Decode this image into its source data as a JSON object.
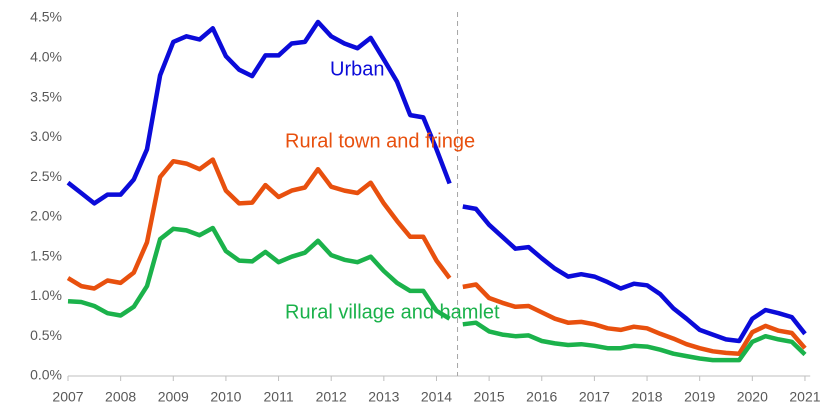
{
  "chart_data": {
    "type": "line",
    "x": [
      2007,
      2007.25,
      2007.5,
      2007.75,
      2008,
      2008.25,
      2008.5,
      2008.75,
      2009,
      2009.25,
      2009.5,
      2009.75,
      2010,
      2010.25,
      2010.5,
      2010.75,
      2011,
      2011.25,
      2011.5,
      2011.75,
      2012,
      2012.25,
      2012.5,
      2012.75,
      2013,
      2013.25,
      2013.5,
      2013.75,
      2014,
      2014.25,
      2014.5,
      2014.75,
      2015,
      2015.25,
      2015.5,
      2015.75,
      2016,
      2016.25,
      2016.5,
      2016.75,
      2017,
      2017.25,
      2017.5,
      2017.75,
      2018,
      2018.25,
      2018.5,
      2018.75,
      2019,
      2019.25,
      2019.5,
      2019.75,
      2020,
      2020.25,
      2020.5,
      2020.75,
      2021
    ],
    "series": [
      {
        "name": "Urban",
        "color": "#0b0bd9",
        "values": [
          2.43,
          2.3,
          2.17,
          2.28,
          2.28,
          2.47,
          2.85,
          3.78,
          4.2,
          4.27,
          4.23,
          4.37,
          4.02,
          3.85,
          3.77,
          4.03,
          4.03,
          4.18,
          4.2,
          4.45,
          4.27,
          4.18,
          4.12,
          4.25,
          3.98,
          3.7,
          3.28,
          3.25,
          2.85,
          2.42,
          2.13,
          2.1,
          1.9,
          1.75,
          1.6,
          1.62,
          1.48,
          1.35,
          1.25,
          1.28,
          1.25,
          1.18,
          1.1,
          1.16,
          1.14,
          1.03,
          0.85,
          0.72,
          0.58,
          0.52,
          0.46,
          0.44,
          0.72,
          0.83,
          0.79,
          0.74,
          0.53
        ]
      },
      {
        "name": "Rural town and fringe",
        "color": "#e8500e",
        "values": [
          1.23,
          1.13,
          1.1,
          1.2,
          1.17,
          1.3,
          1.68,
          2.5,
          2.7,
          2.67,
          2.6,
          2.72,
          2.33,
          2.17,
          2.18,
          2.4,
          2.25,
          2.33,
          2.37,
          2.6,
          2.38,
          2.33,
          2.3,
          2.43,
          2.17,
          1.95,
          1.75,
          1.75,
          1.45,
          1.23,
          1.12,
          1.15,
          0.98,
          0.92,
          0.87,
          0.88,
          0.8,
          0.72,
          0.67,
          0.68,
          0.65,
          0.6,
          0.58,
          0.62,
          0.6,
          0.53,
          0.47,
          0.4,
          0.35,
          0.31,
          0.29,
          0.28,
          0.55,
          0.63,
          0.57,
          0.54,
          0.35
        ]
      },
      {
        "name": "Rural village and hamlet",
        "color": "#1bb24b",
        "values": [
          0.94,
          0.93,
          0.88,
          0.79,
          0.76,
          0.87,
          1.13,
          1.72,
          1.85,
          1.83,
          1.77,
          1.86,
          1.57,
          1.45,
          1.44,
          1.56,
          1.43,
          1.5,
          1.55,
          1.7,
          1.52,
          1.46,
          1.43,
          1.5,
          1.32,
          1.17,
          1.07,
          1.07,
          0.82,
          0.72,
          0.65,
          0.67,
          0.56,
          0.52,
          0.5,
          0.51,
          0.44,
          0.41,
          0.39,
          0.4,
          0.38,
          0.35,
          0.35,
          0.38,
          0.37,
          0.33,
          0.28,
          0.25,
          0.22,
          0.2,
          0.2,
          0.2,
          0.43,
          0.5,
          0.46,
          0.43,
          0.27
        ]
      }
    ],
    "xlim": [
      2007,
      2021.1
    ],
    "xticks": [
      2007,
      2008,
      2009,
      2010,
      2011,
      2012,
      2013,
      2014,
      2015,
      2016,
      2017,
      2018,
      2019,
      2020,
      2021
    ],
    "ylim": [
      0,
      4.5
    ],
    "yticks": [
      {
        "value": 0,
        "label": "0.0%"
      },
      {
        "value": 0.5,
        "label": "0.5%"
      },
      {
        "value": 1,
        "label": "1.0%"
      },
      {
        "value": 1.5,
        "label": "1.5%"
      },
      {
        "value": 2,
        "label": "2.0%"
      },
      {
        "value": 2.5,
        "label": "2.5%"
      },
      {
        "value": 3,
        "label": "3.0%"
      },
      {
        "value": 3.5,
        "label": "3.5%"
      },
      {
        "value": 4,
        "label": "4.0%"
      },
      {
        "value": 4.5,
        "label": "4.5%"
      }
    ],
    "divider_x": 2014.4
  }
}
